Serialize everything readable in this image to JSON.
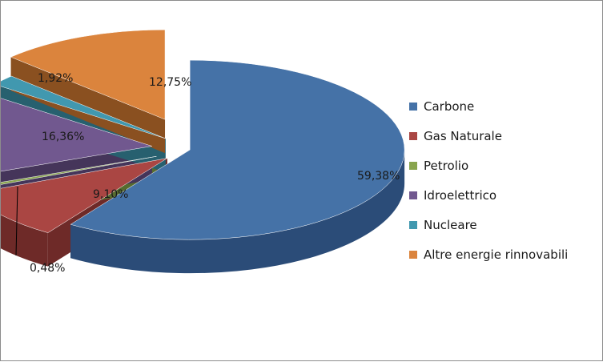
{
  "chart_data": {
    "type": "pie",
    "style": "3d-exploded",
    "legend_position": "right",
    "categories": [
      "Carbone",
      "Gas Naturale",
      "Petrolio",
      "Idroelettrico",
      "Nucleare",
      "Altre energie rinnovabili"
    ],
    "values": [
      59.38,
      9.1,
      0.48,
      16.36,
      1.92,
      12.75
    ],
    "value_labels": [
      "59,38%",
      "9,10%",
      "0,48%",
      "16,36%",
      "1,92%",
      "12,75%"
    ],
    "colors": [
      "#4572A7",
      "#AA4643",
      "#89A54E",
      "#71588F",
      "#4198AF",
      "#DB843D"
    ],
    "side_colors": [
      "#2B4C78",
      "#6E2A28",
      "#566B2F",
      "#45355A",
      "#27606F",
      "#8A5020"
    ]
  }
}
